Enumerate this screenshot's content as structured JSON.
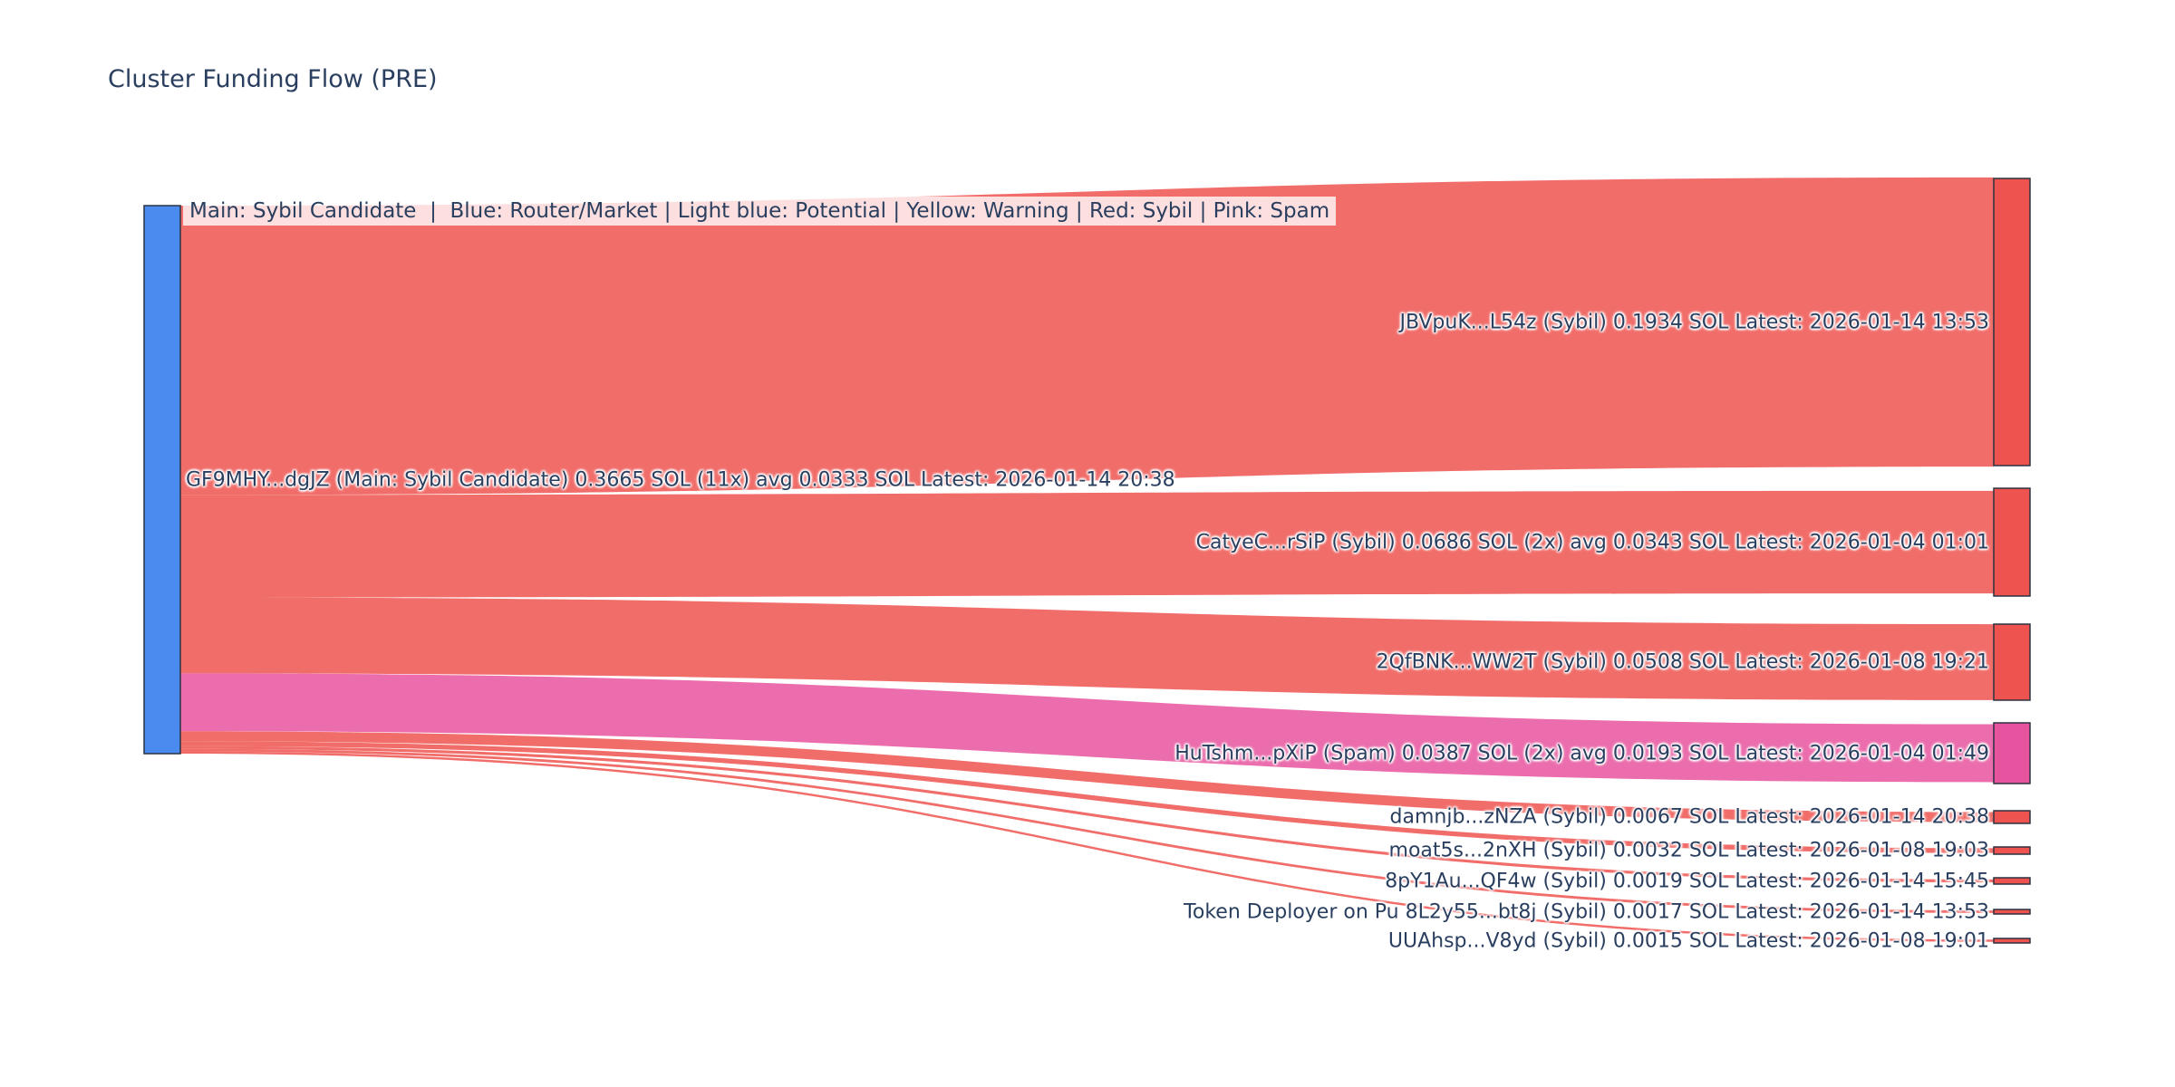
{
  "chart_data": {
    "type": "sankey",
    "title": "Cluster Funding Flow (PRE)",
    "legend_note": "Main: Sybil Candidate  |  Blue: Router/Market | Light blue: Potential | Yellow: Warning | Red: Sybil | Pink: Spam",
    "unit": "SOL",
    "flow_total_sol": 0.3665,
    "source_node": {
      "id": "GF9MHY...dgJZ",
      "category": "Main: Sybil Candidate",
      "label": "GF9MHY...dgJZ (Main: Sybil Candidate) 0.3665 SOL (11x) avg 0.0333 SOL Latest: 2026-01-14 20:38",
      "total_sol": 0.3665,
      "tx_count": "11x",
      "avg_sol": 0.0333,
      "latest": "2026-01-14 20:38",
      "color": "#4b8bf0"
    },
    "target_nodes": [
      {
        "id": "JBVpuK...L54z",
        "category": "Sybil",
        "value_sol": 0.1934,
        "latest": "2026-01-14 13:53",
        "label": "JBVpuK...L54z (Sybil) 0.1934 SOL Latest: 2026-01-14 13:53",
        "color": "#ee5350"
      },
      {
        "id": "CatyeC...rSiP",
        "category": "Sybil",
        "value_sol": 0.0686,
        "tx_count": "2x",
        "avg_sol": 0.0343,
        "latest": "2026-01-04 01:01",
        "label": "CatyeC...rSiP (Sybil) 0.0686 SOL (2x) avg 0.0343 SOL Latest: 2026-01-04 01:01",
        "color": "#ee5350"
      },
      {
        "id": "2QfBNK...WW2T",
        "category": "Sybil",
        "value_sol": 0.0508,
        "latest": "2026-01-08 19:21",
        "label": "2QfBNK...WW2T (Sybil) 0.0508 SOL Latest: 2026-01-08 19:21",
        "color": "#ee5350"
      },
      {
        "id": "HuTshm...pXiP",
        "category": "Spam",
        "value_sol": 0.0387,
        "tx_count": "2x",
        "avg_sol": 0.0193,
        "latest": "2026-01-04 01:49",
        "label": "HuTshm...pXiP (Spam) 0.0387 SOL (2x) avg 0.0193 SOL Latest: 2026-01-04 01:49",
        "color": "#e8539f"
      },
      {
        "id": "damnjb...zNZA",
        "category": "Sybil",
        "value_sol": 0.0067,
        "latest": "2026-01-14 20:38",
        "label": "damnjb...zNZA (Sybil) 0.0067 SOL Latest: 2026-01-14 20:38",
        "color": "#ee5350"
      },
      {
        "id": "moat5s...2nXH",
        "category": "Sybil",
        "value_sol": 0.0032,
        "latest": "2026-01-08 19:03",
        "label": "moat5s...2nXH (Sybil) 0.0032 SOL Latest: 2026-01-08 19:03",
        "color": "#ee5350"
      },
      {
        "id": "8pY1Au...QF4w",
        "category": "Sybil",
        "value_sol": 0.0019,
        "latest": "2026-01-14 15:45",
        "label": "8pY1Au...QF4w (Sybil) 0.0019 SOL Latest: 2026-01-14 15:45",
        "color": "#ee5350"
      },
      {
        "id": "8L2y55...bt8j",
        "category": "Sybil",
        "value_sol": 0.0017,
        "latest": "2026-01-14 13:53",
        "label": "Token Deployer on Pu 8L2y55...bt8j (Sybil) 0.0017 SOL Latest: 2026-01-14 13:53",
        "color": "#ee5350"
      },
      {
        "id": "UUAhsp...V8yd",
        "category": "Sybil",
        "value_sol": 0.0015,
        "latest": "2026-01-08 19:01",
        "label": "UUAhsp...V8yd (Sybil) 0.0015 SOL Latest: 2026-01-08 19:01",
        "color": "#ee5350"
      }
    ],
    "colors": {
      "text": "#2a3f5f",
      "node_border": "#2b3340",
      "source_blue": "#4b8bf0",
      "sybil_red": "#ee5350",
      "spam_pink": "#e8539f",
      "background": "#ffffff"
    }
  }
}
